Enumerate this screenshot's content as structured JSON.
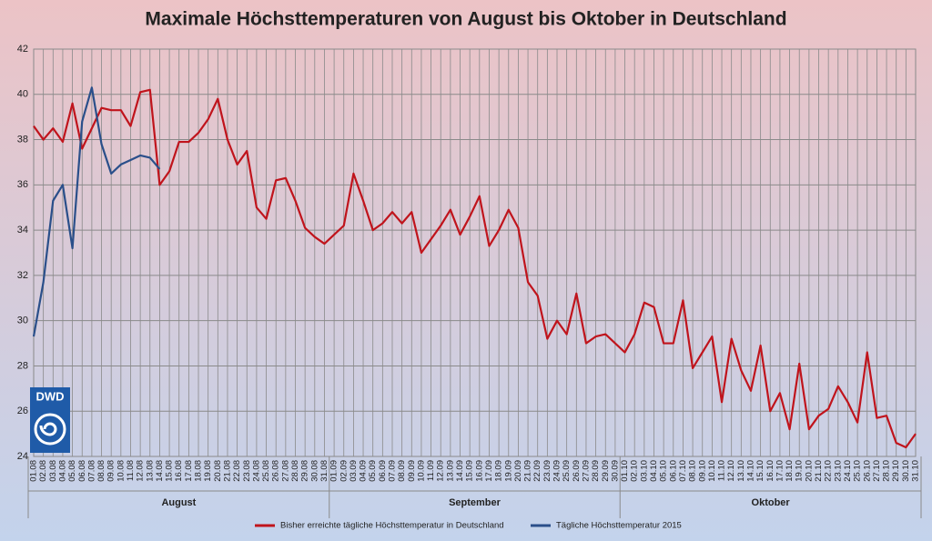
{
  "chart_data": {
    "type": "line",
    "title": "Maximale Höchsttemperaturen von August bis Oktober in Deutschland",
    "logo_text": "DWD",
    "categories": [
      "01.08",
      "02.08",
      "03.08",
      "04.08",
      "05.08",
      "06.08",
      "07.08",
      "08.08",
      "09.08",
      "10.08",
      "11.08",
      "12.08",
      "13.08",
      "14.08",
      "15.08",
      "16.08",
      "17.08",
      "18.08",
      "19.08",
      "20.08",
      "21.08",
      "22.08",
      "23.08",
      "24.08",
      "25.08",
      "26.08",
      "27.08",
      "28.08",
      "29.08",
      "30.08",
      "31.08",
      "01.09",
      "02.09",
      "03.09",
      "04.09",
      "05.09",
      "06.09",
      "07.09",
      "08.09",
      "09.09",
      "10.09",
      "11.09",
      "12.09",
      "13.09",
      "14.09",
      "15.09",
      "16.09",
      "17.09",
      "18.09",
      "19.09",
      "20.09",
      "21.09",
      "22.09",
      "23.09",
      "24.09",
      "25.09",
      "26.09",
      "27.09",
      "28.09",
      "29.09",
      "30.09",
      "01.10",
      "02.10",
      "03.10",
      "04.10",
      "05.10",
      "06.10",
      "07.10",
      "08.10",
      "09.10",
      "10.10",
      "11.10",
      "12.10",
      "13.10",
      "14.10",
      "15.10",
      "16.10",
      "17.10",
      "18.10",
      "19.10",
      "20.10",
      "21.10",
      "22.10",
      "23.10",
      "24.10",
      "25.10",
      "26.10",
      "27.10",
      "28.10",
      "29.10",
      "30.10",
      "31.10"
    ],
    "months": [
      "August",
      "September",
      "Oktober"
    ],
    "series": [
      {
        "name": "Bisher erreichte tägliche Höchsttemperatur in Deutschland",
        "color": "#c0141c",
        "values": [
          38.6,
          38.0,
          38.5,
          37.9,
          39.6,
          37.6,
          38.5,
          39.4,
          39.3,
          39.3,
          38.6,
          40.1,
          40.2,
          36.0,
          36.6,
          37.9,
          37.9,
          38.3,
          38.9,
          39.8,
          38.0,
          36.9,
          37.5,
          35.0,
          34.5,
          36.2,
          36.3,
          35.3,
          34.1,
          33.7,
          33.4,
          33.8,
          34.2,
          36.5,
          35.3,
          34.0,
          34.3,
          34.8,
          34.3,
          34.8,
          33.0,
          33.6,
          34.2,
          34.9,
          33.8,
          34.6,
          35.5,
          33.3,
          34.0,
          34.9,
          34.1,
          31.7,
          31.1,
          29.2,
          30.0,
          29.4,
          31.2,
          29.0,
          29.3,
          29.4,
          29.0,
          28.6,
          29.4,
          30.8,
          30.6,
          29.0,
          29.0,
          30.9,
          27.9,
          28.6,
          29.3,
          26.4,
          29.2,
          27.8,
          26.9,
          28.9,
          26.0,
          26.8,
          25.2,
          28.1,
          25.2,
          25.8,
          26.1,
          27.1,
          26.4,
          25.5,
          28.6,
          25.7,
          25.8,
          24.6,
          24.4,
          25.0
        ]
      },
      {
        "name": "Tägliche Höchsttemperatur 2015",
        "color": "#2a4f8a",
        "values": [
          29.3,
          31.7,
          35.3,
          36.0,
          33.2,
          38.8,
          40.3,
          37.8,
          36.5,
          36.9,
          37.1,
          37.3,
          37.2,
          36.7,
          null,
          null,
          null,
          null,
          null,
          null,
          null,
          null,
          null,
          null,
          null,
          null,
          null,
          null,
          null,
          null,
          null,
          null,
          null,
          null,
          null,
          null,
          null,
          null,
          null,
          null,
          null,
          null,
          null,
          null,
          null,
          null,
          null,
          null,
          null,
          null,
          null,
          null,
          null,
          null,
          null,
          null,
          null,
          null,
          null,
          null,
          null,
          null,
          null,
          null,
          null,
          null,
          null,
          null,
          null,
          null,
          null,
          null,
          null,
          null,
          null,
          null,
          null,
          null,
          null,
          null,
          null,
          null,
          null,
          null,
          null,
          null,
          null,
          null,
          null,
          null,
          null,
          null
        ]
      }
    ],
    "ylim": [
      24,
      42
    ],
    "yticks": [
      24,
      26,
      28,
      30,
      32,
      34,
      36,
      38,
      40,
      42
    ],
    "grid": true
  }
}
